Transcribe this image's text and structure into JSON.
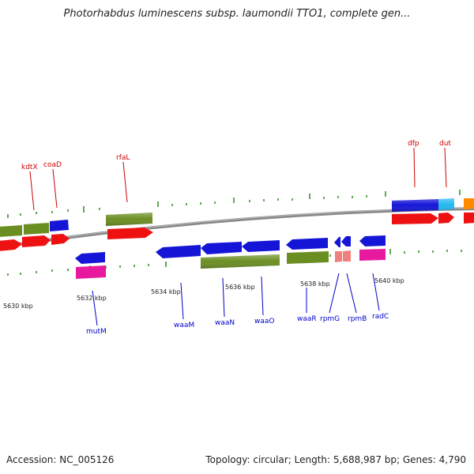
{
  "title": "Photorhabdus luminescens subsp. laumondii TTO1, complete gen...",
  "footer": {
    "accession": "Accession: NC_005126",
    "summary": "Topology: circular; Length: 5,688,987 bp; Genes: 4,790"
  },
  "ticks": [
    {
      "label": "5630 kbp"
    },
    {
      "label": "5632 kbp"
    },
    {
      "label": "5634 kbp"
    },
    {
      "label": "5636 kbp"
    },
    {
      "label": "5638 kbp"
    },
    {
      "label": "5640 kbp"
    }
  ],
  "genes_top": [
    {
      "label": "kdtX"
    },
    {
      "label": "coaD"
    },
    {
      "label": "rfaL"
    },
    {
      "label": "dfp"
    },
    {
      "label": "dut"
    }
  ],
  "genes_bottom": [
    {
      "label": "mutM"
    },
    {
      "label": "waaM"
    },
    {
      "label": "waaN"
    },
    {
      "label": "waaO"
    },
    {
      "label": "waaR"
    },
    {
      "label": "rpmG"
    },
    {
      "label": "rpmB"
    },
    {
      "label": "radC"
    }
  ],
  "colors": {
    "backbone": "#888888",
    "tick": "#2e8b1e",
    "cds_blue": "#1515d8",
    "gene_olive": "#6b8e23",
    "gene_red": "#ee1111",
    "gene_pink": "#e6199f",
    "gene_salmon": "#f08080",
    "gene_cyan": "#22b8f0",
    "gene_orange": "#ff8c00",
    "label_top": "#cc0000",
    "label_bottom": "#0000cc"
  }
}
